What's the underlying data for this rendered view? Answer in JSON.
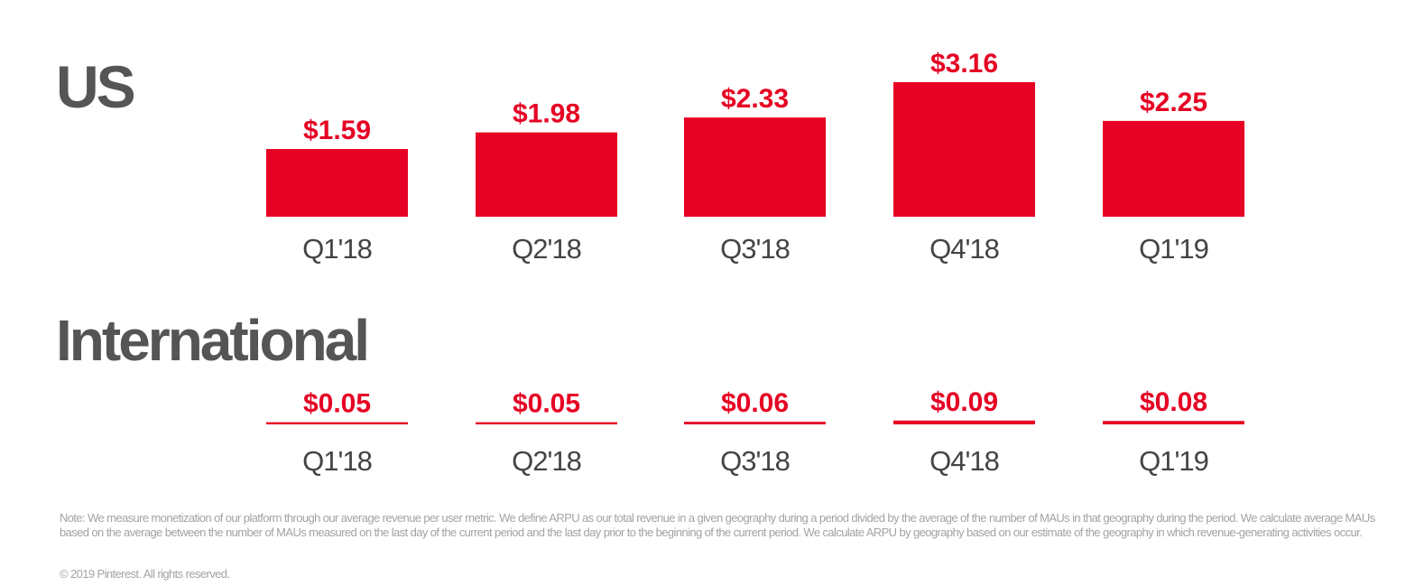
{
  "colors": {
    "bar": "#e60023",
    "value_label": "#e60023",
    "title": "#555555",
    "category_label": "#444444",
    "note": "#a3a3a3"
  },
  "chart_data": [
    {
      "type": "bar",
      "title": "US",
      "categories": [
        "Q1'18",
        "Q2'18",
        "Q3'18",
        "Q4'18",
        "Q1'19"
      ],
      "values": [
        1.59,
        1.98,
        2.33,
        3.16,
        2.25
      ],
      "value_labels": [
        "$1.59",
        "$1.98",
        "$2.33",
        "$3.16",
        "$2.25"
      ],
      "ylim": [
        0,
        3.16
      ],
      "grid": false,
      "legend": "none"
    },
    {
      "type": "bar",
      "title": "International",
      "categories": [
        "Q1'18",
        "Q2'18",
        "Q3'18",
        "Q4'18",
        "Q1'19"
      ],
      "values": [
        0.05,
        0.05,
        0.06,
        0.09,
        0.08
      ],
      "value_labels": [
        "$0.05",
        "$0.05",
        "$0.06",
        "$0.09",
        "$0.08"
      ],
      "ylim": [
        0,
        3.16
      ],
      "grid": false,
      "legend": "none"
    }
  ],
  "footer": {
    "note": "Note: We measure monetization of our platform through our average revenue per user metric. We define ARPU as our total revenue in a given geography during a period divided by the average of the number of MAUs in that geography during the period. We calculate average MAUs based on the average between the number of MAUs measured on the last day of the current period and the last day prior to the beginning of the current period. We calculate ARPU by geography based on our estimate of the geography in which revenue-generating activities occur.",
    "copyright": "© 2019 Pinterest. All rights reserved."
  }
}
